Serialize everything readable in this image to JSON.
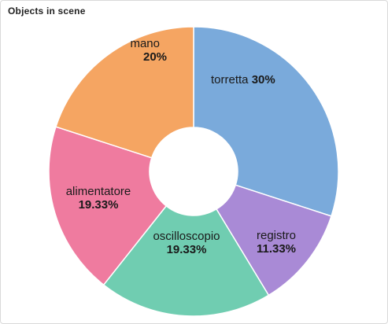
{
  "panel": {
    "title": "Objects in scene"
  },
  "chart_data": {
    "type": "pie",
    "donut": true,
    "title": "Objects in scene",
    "slices": [
      {
        "label": "torretta",
        "value": 30,
        "display": "30%",
        "color": "#7aaadb"
      },
      {
        "label": "registro",
        "value": 11.33,
        "display": "11.33%",
        "color": "#a98ad6"
      },
      {
        "label": "oscilloscopio",
        "value": 19.33,
        "display": "19.33%",
        "color": "#70cdb1"
      },
      {
        "label": "alimentatore",
        "value": 19.33,
        "display": "19.33%",
        "color": "#ef7b9f"
      },
      {
        "label": "mano",
        "value": 20,
        "display": "20%",
        "color": "#f5a562"
      }
    ],
    "legend": "none"
  }
}
